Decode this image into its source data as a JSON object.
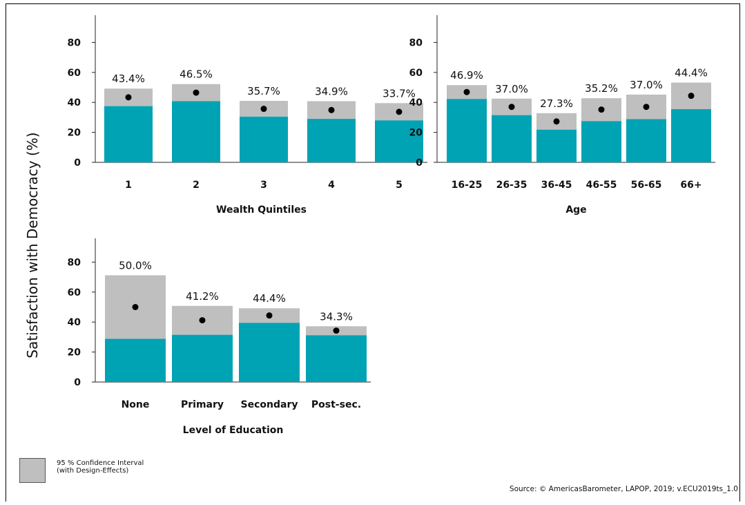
{
  "ylabel": "Satisfaction with Democracy (%)",
  "legend": {
    "label_line1": "95 % Confidence Interval",
    "label_line2": "(with Design-Effects)"
  },
  "source": "Source: © AmericasBarometer, LAPOP, 2019; v.ECU2019ts_1.0",
  "colors": {
    "bar": "#00a3b4",
    "ci": "#bfbfbf",
    "point": "#000000"
  },
  "chart_data": [
    {
      "type": "bar",
      "xlabel": "Wealth Quintiles",
      "ylim": [
        0,
        80
      ],
      "yticks": [
        0,
        20,
        40,
        60,
        80
      ],
      "categories": [
        "1",
        "2",
        "3",
        "4",
        "5"
      ],
      "values": [
        43.4,
        46.5,
        35.7,
        34.9,
        33.7
      ],
      "labels": [
        "43.4%",
        "46.5%",
        "35.7%",
        "34.9%",
        "33.7%"
      ],
      "ci_low": [
        37.5,
        40.8,
        30.5,
        29.0,
        28.0
      ],
      "ci_high": [
        49.2,
        52.2,
        41.0,
        40.8,
        39.5
      ]
    },
    {
      "type": "bar",
      "xlabel": "Age",
      "ylim": [
        0,
        80
      ],
      "yticks": [
        0,
        20,
        40,
        60,
        80
      ],
      "categories": [
        "16-25",
        "26-35",
        "36-45",
        "46-55",
        "56-65",
        "66+"
      ],
      "values": [
        46.9,
        37.0,
        27.3,
        35.2,
        37.0,
        44.4
      ],
      "labels": [
        "46.9%",
        "37.0%",
        "27.3%",
        "35.2%",
        "37.0%",
        "44.4%"
      ],
      "ci_low": [
        42.3,
        31.5,
        21.8,
        27.5,
        28.8,
        35.5
      ],
      "ci_high": [
        51.5,
        42.5,
        32.8,
        42.8,
        45.2,
        53.2
      ]
    },
    {
      "type": "bar",
      "xlabel": "Level of Education",
      "ylim": [
        0,
        80
      ],
      "yticks": [
        0,
        20,
        40,
        60,
        80
      ],
      "categories": [
        "None",
        "Primary",
        "Secondary",
        "Post-sec."
      ],
      "values": [
        50.0,
        41.2,
        44.4,
        34.3
      ],
      "labels": [
        "50.0%",
        "41.2%",
        "44.4%",
        "34.3%"
      ],
      "ci_low": [
        28.8,
        31.5,
        39.5,
        31.2
      ],
      "ci_high": [
        71.2,
        50.8,
        49.2,
        37.2
      ]
    }
  ]
}
